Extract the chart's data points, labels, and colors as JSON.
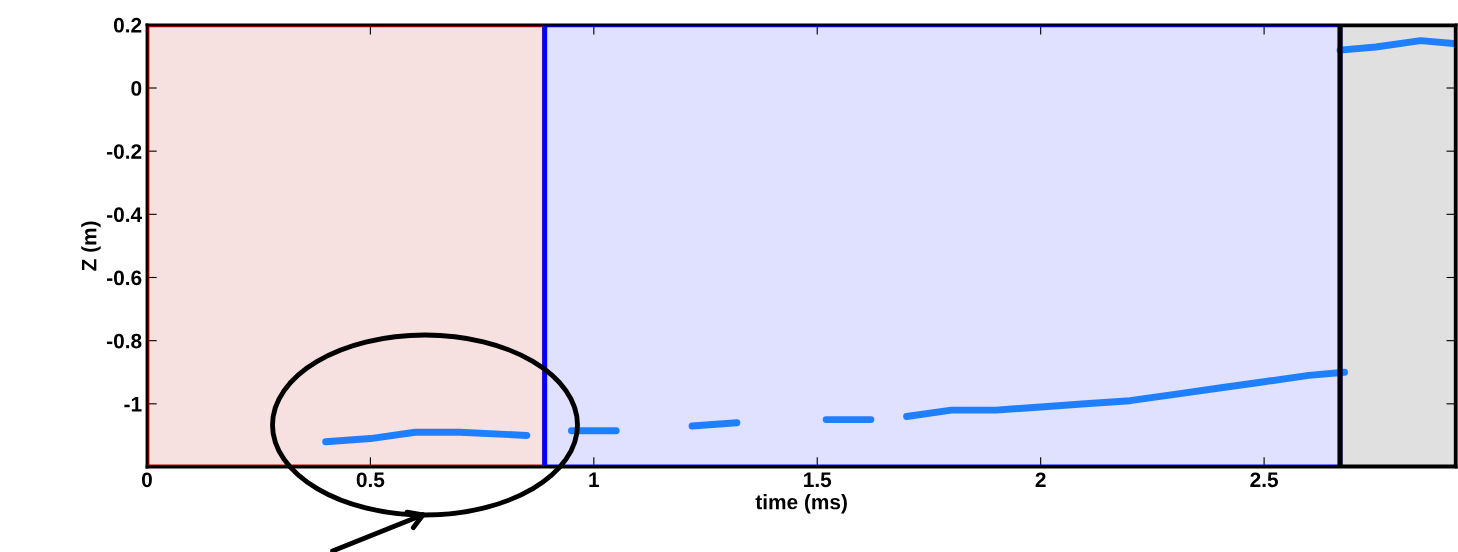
{
  "chart_data": {
    "type": "line",
    "xlabel": "time (ms)",
    "ylabel": "Z (m)",
    "xlim": [
      0,
      2.93
    ],
    "ylim": [
      -1.2,
      0.2
    ],
    "xticks": [
      0,
      0.5,
      1,
      1.5,
      2,
      2.5
    ],
    "yticks": [
      0.2,
      0,
      -0.2,
      -0.4,
      -0.6,
      -0.8,
      -1
    ],
    "series": [
      {
        "color": "#1e7fff",
        "x": [
          0.4,
          0.5,
          0.6,
          0.7,
          0.85,
          0.9,
          0.95,
          1.05,
          1.1,
          1.22,
          1.32,
          1.4,
          1.52,
          1.62,
          1.66,
          1.7,
          1.8,
          1.9,
          2.0,
          2.1,
          2.2,
          2.3,
          2.4,
          2.5,
          2.6,
          2.68
        ],
        "values": [
          -1.12,
          -1.11,
          -1.09,
          -1.09,
          -1.1,
          null,
          -1.085,
          -1.085,
          null,
          -1.07,
          -1.06,
          null,
          -1.05,
          -1.05,
          null,
          -1.04,
          -1.02,
          -1.02,
          -1.01,
          -1.0,
          -0.99,
          -0.97,
          -0.95,
          -0.93,
          -0.91,
          -0.9
        ]
      },
      {
        "color": "#1e7fff",
        "x": [
          2.67,
          2.75,
          2.85,
          2.93
        ],
        "values": [
          0.12,
          0.13,
          0.15,
          0.14
        ]
      }
    ],
    "bands": [
      {
        "axis": "x",
        "from": 0,
        "to": 0.89,
        "color": "#c00000"
      },
      {
        "axis": "x",
        "from": 0.89,
        "to": 2.67,
        "color": "#0000ff"
      },
      {
        "axis": "x",
        "from": 2.67,
        "to": 2.93,
        "color": "#000000"
      }
    ],
    "grid": false,
    "marker": "none",
    "line_style": "solid"
  }
}
